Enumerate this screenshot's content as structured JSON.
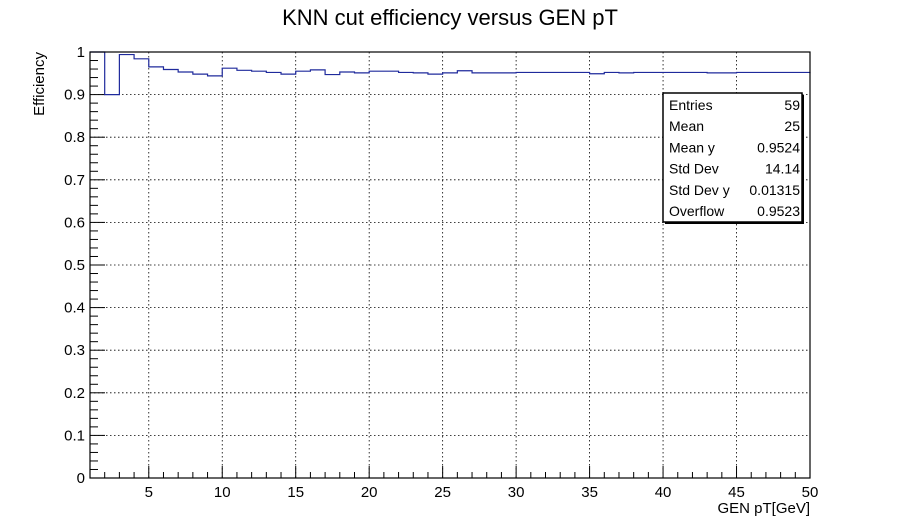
{
  "chart_data": {
    "type": "line",
    "title": "KNN cut efficiency versus GEN pT",
    "xlabel": "GEN pT[GeV]",
    "ylabel": "Efficiency",
    "xlim": [
      1,
      50
    ],
    "ylim": [
      0,
      1
    ],
    "x_ticks": [
      5,
      10,
      15,
      20,
      25,
      30,
      35,
      40,
      45,
      50
    ],
    "y_ticks": [
      0,
      0.1,
      0.2,
      0.3,
      0.4,
      0.5,
      0.6,
      0.7,
      0.8,
      0.9,
      1
    ],
    "grid": true,
    "line_color": "#1f2a9c",
    "bin_edges": [
      1,
      2,
      3,
      4,
      5,
      6,
      7,
      8,
      9,
      10,
      11,
      12,
      13,
      14,
      15,
      16,
      17,
      18,
      19,
      20,
      21,
      22,
      23,
      24,
      25,
      26,
      27,
      28,
      29,
      30,
      31,
      32,
      33,
      34,
      35,
      36,
      37,
      38,
      39,
      40,
      41,
      42,
      43,
      44,
      45,
      46,
      47,
      48,
      49,
      50
    ],
    "values": [
      1.0,
      0.9,
      0.994,
      0.984,
      0.965,
      0.959,
      0.953,
      0.948,
      0.944,
      0.962,
      0.957,
      0.955,
      0.952,
      0.948,
      0.955,
      0.958,
      0.947,
      0.953,
      0.951,
      0.955,
      0.955,
      0.952,
      0.951,
      0.948,
      0.951,
      0.956,
      0.951,
      0.951,
      0.951,
      0.952,
      0.952,
      0.952,
      0.952,
      0.952,
      0.949,
      0.952,
      0.951,
      0.952,
      0.952,
      0.952,
      0.952,
      0.952,
      0.951,
      0.951,
      0.952,
      0.952,
      0.952,
      0.952,
      0.952,
      0.95
    ],
    "stats": [
      {
        "label": "Entries",
        "value": "59"
      },
      {
        "label": "Mean",
        "value": "25"
      },
      {
        "label": "Mean y",
        "value": "0.9524"
      },
      {
        "label": "Std Dev",
        "value": "14.14"
      },
      {
        "label": "Std Dev y",
        "value": "0.01315"
      },
      {
        "label": "Overflow",
        "value": "0.9523"
      }
    ]
  }
}
